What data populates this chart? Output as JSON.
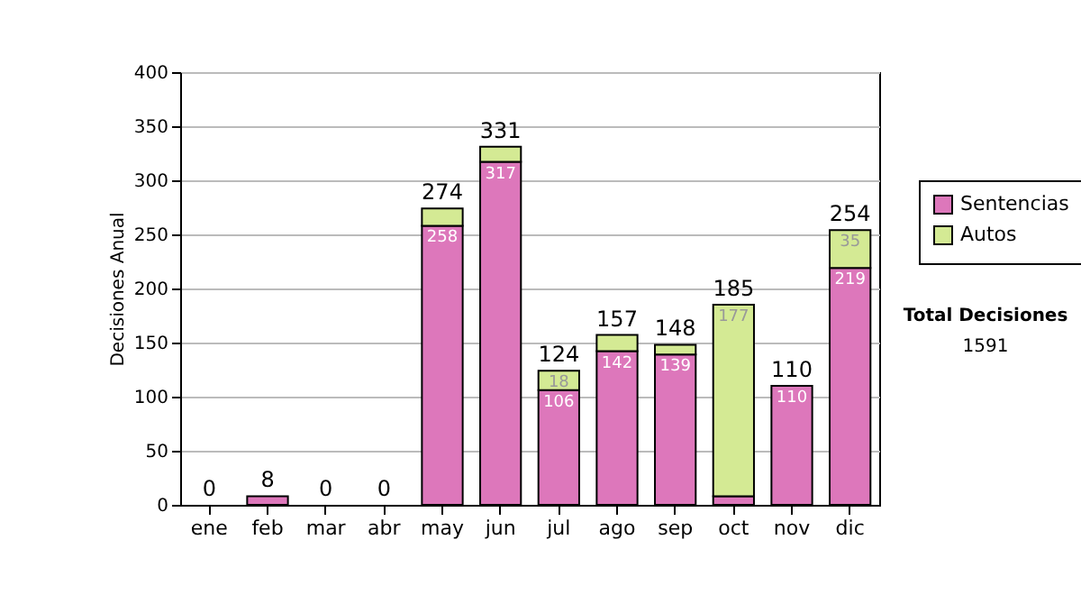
{
  "chart_data": {
    "type": "bar",
    "stacked": true,
    "ylabel": "Decisiones Anual",
    "categories": [
      "ene",
      "feb",
      "mar",
      "abr",
      "may",
      "jun",
      "jul",
      "ago",
      "sep",
      "oct",
      "nov",
      "dic"
    ],
    "series": [
      {
        "name": "Sentencias",
        "color": "#dd77bb",
        "values": [
          0,
          8,
          0,
          0,
          258,
          317,
          106,
          142,
          139,
          8,
          110,
          219
        ],
        "value_labels": [
          null,
          null,
          null,
          null,
          "258",
          "317",
          "106",
          "142",
          "139",
          null,
          "110",
          "219"
        ]
      },
      {
        "name": "Autos",
        "color": "#d4ea94",
        "values": [
          0,
          0,
          0,
          0,
          16,
          14,
          18,
          15,
          9,
          177,
          0,
          35
        ],
        "value_labels": [
          null,
          null,
          null,
          null,
          null,
          null,
          "18",
          null,
          null,
          "177",
          null,
          "35"
        ]
      }
    ],
    "totals": [
      "0",
      "8",
      "0",
      "0",
      "274",
      "331",
      "124",
      "157",
      "148",
      "185",
      "110",
      "254"
    ],
    "ylim": [
      0,
      400
    ],
    "yticks": [
      0,
      50,
      100,
      150,
      200,
      250,
      300,
      350,
      400
    ],
    "grid": "y",
    "legend": "right",
    "annotations": [
      "Total Decisiones",
      "1591"
    ]
  }
}
